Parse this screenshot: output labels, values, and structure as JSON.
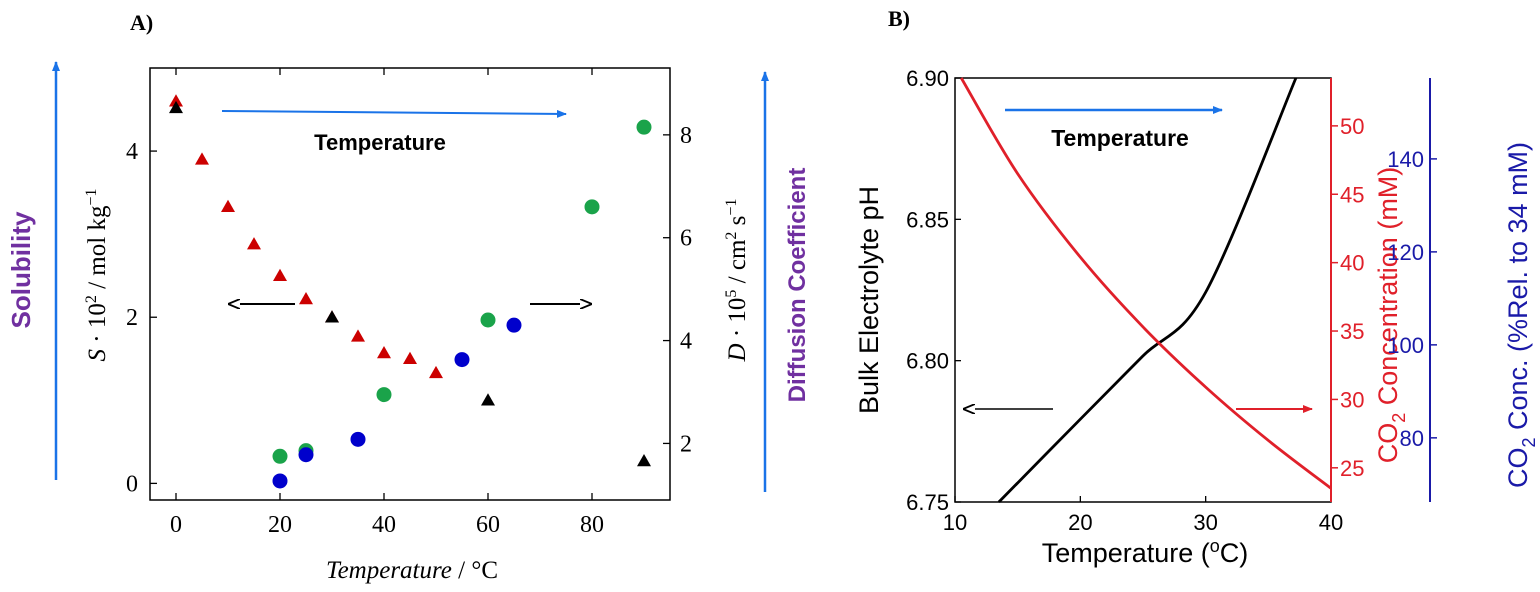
{
  "panel_a": {
    "label": "A)",
    "annotation": "Temperature",
    "side_left": "Solubility",
    "side_right": "Diffusion Coefficient",
    "ylabel_left": {
      "sym": "S",
      "mid": " · 10",
      "sup": "2",
      "unit": " / mol kg",
      "unit_sup": "−1"
    },
    "ylabel_right": {
      "sym": "D",
      "mid": " · 10",
      "sup": "5",
      "unit": " / cm",
      "u1": "2",
      "s": " s",
      "u2": "−1"
    },
    "xlabel": {
      "italic": "Temperature",
      "rest": " / °C"
    }
  },
  "panel_b": {
    "label": "B)",
    "annotation": "Temperature",
    "ylabel_left": "Bulk Electrolyte pH",
    "ylabel_red": {
      "pre": "CO",
      "sub": "2",
      "post": " Concentration (mM)"
    },
    "ylabel_blue": {
      "pre": "CO",
      "sub": "2",
      "post": " Conc. (%Rel. to 34 mM)"
    },
    "xlabel": {
      "pre": "Temperature (",
      "sup": "o",
      "post": "C)"
    }
  },
  "colors": {
    "red": "#cc0000",
    "green": "#1aa34a",
    "blue": "#0000cc",
    "black": "#000000",
    "arrow_blue": "#1a73e8",
    "purple": "#7030a0",
    "curve_red": "#e0202a",
    "axis_blue": "#1a1aa8"
  },
  "chart_data": [
    {
      "type": "scatter",
      "xlim": [
        -5,
        95
      ],
      "ylim": [
        -0.2,
        5
      ],
      "y2lim": [
        0.9,
        9.3
      ],
      "x_ticks": [
        0,
        20,
        40,
        60,
        80
      ],
      "y_ticks": [
        0,
        2,
        4
      ],
      "y2_ticks": [
        2,
        4,
        6,
        8
      ],
      "grid": false,
      "series": [
        {
          "marker": "triangle",
          "color": "red",
          "axis": "left",
          "points": [
            [
              0,
              4.6
            ],
            [
              5,
              3.9
            ],
            [
              10,
              3.33
            ],
            [
              15,
              2.88
            ],
            [
              20,
              2.5
            ],
            [
              25,
              2.22
            ],
            [
              30,
              2.0
            ],
            [
              35,
              1.77
            ],
            [
              40,
              1.57
            ],
            [
              45,
              1.5
            ],
            [
              50,
              1.33
            ]
          ]
        },
        {
          "marker": "triangle",
          "color": "black",
          "axis": "left",
          "points": [
            [
              0,
              4.52
            ],
            [
              30,
              2.0
            ],
            [
              60,
              1.0
            ],
            [
              90,
              0.27
            ]
          ]
        },
        {
          "marker": "circle",
          "color": "green",
          "axis": "right",
          "points": [
            [
              20,
              1.75
            ],
            [
              25,
              1.86
            ],
            [
              40,
              2.95
            ],
            [
              60,
              4.4
            ],
            [
              80,
              6.6
            ],
            [
              90,
              8.15
            ]
          ]
        },
        {
          "marker": "circle",
          "color": "blue",
          "axis": "right",
          "points": [
            [
              20,
              1.27
            ],
            [
              25,
              1.78
            ],
            [
              35,
              2.08
            ],
            [
              55,
              3.63
            ],
            [
              65,
              4.3
            ]
          ]
        }
      ]
    },
    {
      "type": "line",
      "xlim": [
        10,
        40
      ],
      "ylim": [
        6.75,
        6.9
      ],
      "y2lim": [
        22.5,
        53.5
      ],
      "y3lim": [
        66.2,
        157.4
      ],
      "x_ticks": [
        10,
        20,
        30,
        40
      ],
      "y_ticks": [
        6.75,
        6.8,
        6.85,
        6.9
      ],
      "y2_ticks": [
        25,
        30,
        35,
        40,
        45,
        50
      ],
      "y3_ticks": [
        80,
        100,
        120,
        140
      ],
      "grid": false,
      "series": [
        {
          "color": "black",
          "axis": "left",
          "x": [
            13.5,
            20,
            25,
            30,
            37.2
          ],
          "y": [
            6.75,
            6.7793,
            6.8017,
            6.8242,
            6.9
          ]
        },
        {
          "color": "red",
          "axis": "right",
          "x": [
            10.5,
            15,
            20,
            25,
            30,
            35,
            40
          ],
          "y": [
            53.5,
            46.5,
            40.4,
            35.3,
            30.9,
            27.0,
            23.5
          ]
        }
      ]
    }
  ]
}
